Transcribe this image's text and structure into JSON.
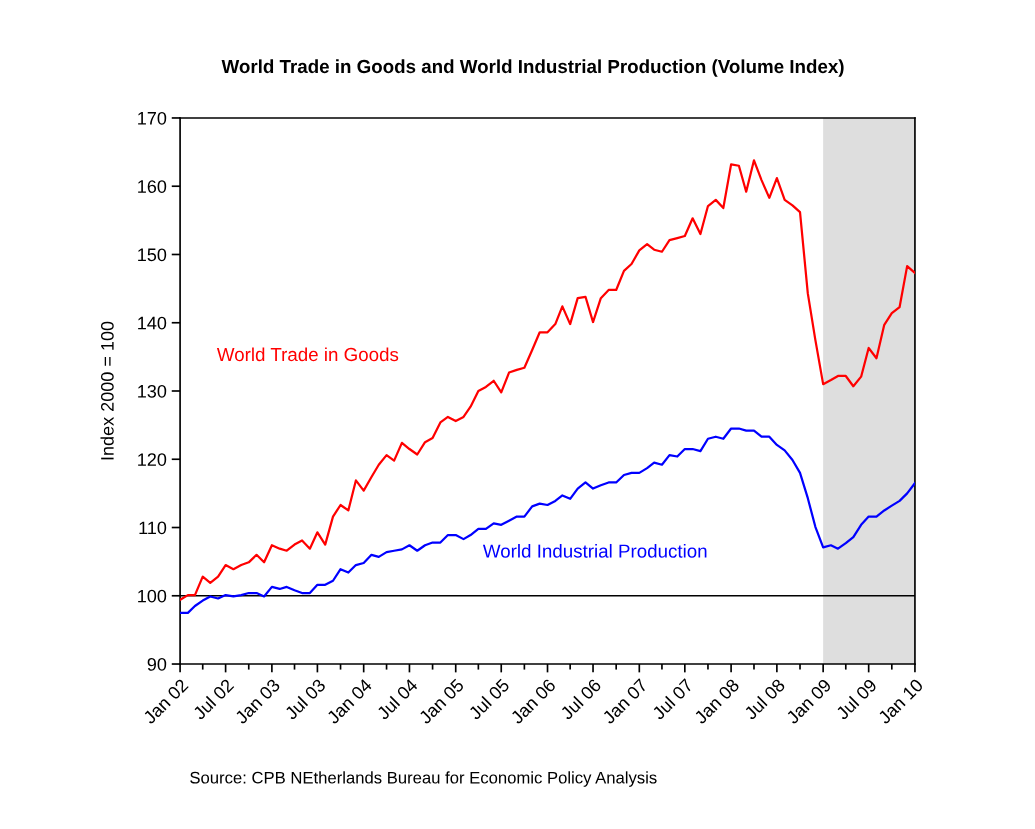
{
  "chart_data": {
    "type": "line",
    "title": "World Trade in Goods and World Industrial Production (Volume Index)",
    "ylabel": "Index 2000 = 100",
    "x": [
      "2002-01",
      "2002-02",
      "2002-03",
      "2002-04",
      "2002-05",
      "2002-06",
      "2002-07",
      "2002-08",
      "2002-09",
      "2002-10",
      "2002-11",
      "2002-12",
      "2003-01",
      "2003-02",
      "2003-03",
      "2003-04",
      "2003-05",
      "2003-06",
      "2003-07",
      "2003-08",
      "2003-09",
      "2003-10",
      "2003-11",
      "2003-12",
      "2004-01",
      "2004-02",
      "2004-03",
      "2004-04",
      "2004-05",
      "2004-06",
      "2004-07",
      "2004-08",
      "2004-09",
      "2004-10",
      "2004-11",
      "2004-12",
      "2005-01",
      "2005-02",
      "2005-03",
      "2005-04",
      "2005-05",
      "2005-06",
      "2005-07",
      "2005-08",
      "2005-09",
      "2005-10",
      "2005-11",
      "2005-12",
      "2006-01",
      "2006-02",
      "2006-03",
      "2006-04",
      "2006-05",
      "2006-06",
      "2006-07",
      "2006-08",
      "2006-09",
      "2006-10",
      "2006-11",
      "2006-12",
      "2007-01",
      "2007-02",
      "2007-03",
      "2007-04",
      "2007-05",
      "2007-06",
      "2007-07",
      "2007-08",
      "2007-09",
      "2007-10",
      "2007-11",
      "2007-12",
      "2008-01",
      "2008-02",
      "2008-03",
      "2008-04",
      "2008-05",
      "2008-06",
      "2008-07",
      "2008-08",
      "2008-09",
      "2008-10",
      "2008-11",
      "2008-12",
      "2009-01",
      "2009-02",
      "2009-03",
      "2009-04",
      "2009-05",
      "2009-06",
      "2009-07",
      "2009-08",
      "2009-09",
      "2009-10",
      "2009-11",
      "2009-12",
      "2010-01"
    ],
    "series": [
      {
        "name": "World Trade in Goods",
        "color": "#ff0000",
        "values": [
          99.4,
          100.1,
          100.1,
          102.8,
          101.9,
          102.8,
          104.5,
          103.9,
          104.5,
          104.9,
          106.0,
          104.9,
          107.4,
          106.9,
          106.6,
          107.5,
          108.1,
          106.9,
          109.3,
          107.5,
          111.6,
          113.3,
          112.5,
          116.9,
          115.4,
          117.4,
          119.2,
          120.6,
          119.8,
          122.4,
          121.5,
          120.7,
          122.5,
          123.1,
          125.4,
          126.2,
          125.6,
          126.2,
          127.7,
          130.0,
          130.6,
          131.5,
          129.8,
          132.7,
          133.1,
          133.4,
          136.0,
          138.6,
          138.6,
          139.8,
          142.4,
          139.8,
          143.6,
          143.8,
          140.1,
          143.6,
          144.8,
          144.8,
          147.6,
          148.6,
          150.6,
          151.5,
          150.7,
          150.4,
          152.1,
          152.4,
          152.7,
          155.3,
          153.0,
          157.1,
          158.0,
          156.8,
          163.2,
          163.0,
          159.2,
          163.8,
          160.9,
          158.3,
          161.2,
          158.0,
          157.2,
          156.2,
          144.3,
          137.5,
          131.0,
          131.6,
          132.2,
          132.2,
          130.7,
          132.1,
          136.3,
          134.8,
          139.7,
          141.4,
          142.3,
          148.3,
          147.3
        ]
      },
      {
        "name": "World Industrial Production",
        "color": "#0000ff",
        "values": [
          97.5,
          97.5,
          98.5,
          99.3,
          99.9,
          99.6,
          100.1,
          99.9,
          100.1,
          100.4,
          100.4,
          99.9,
          101.3,
          101.0,
          101.3,
          100.8,
          100.4,
          100.4,
          101.6,
          101.6,
          102.2,
          103.9,
          103.4,
          104.5,
          104.8,
          106.0,
          105.7,
          106.4,
          106.6,
          106.8,
          107.4,
          106.6,
          107.4,
          107.8,
          107.8,
          108.9,
          108.9,
          108.3,
          108.9,
          109.8,
          109.8,
          110.6,
          110.4,
          111.0,
          111.6,
          111.6,
          113.1,
          113.5,
          113.3,
          113.9,
          114.7,
          114.2,
          115.7,
          116.6,
          115.7,
          116.2,
          116.6,
          116.6,
          117.7,
          118.0,
          118.0,
          118.7,
          119.5,
          119.2,
          120.6,
          120.4,
          121.5,
          121.5,
          121.2,
          123.0,
          123.3,
          123.0,
          124.5,
          124.5,
          124.2,
          124.2,
          123.3,
          123.3,
          122.1,
          121.3,
          119.9,
          118.0,
          114.3,
          110.1,
          107.1,
          107.4,
          106.9,
          107.7,
          108.6,
          110.4,
          111.6,
          111.6,
          112.5,
          113.2,
          113.9,
          115.0,
          116.5
        ]
      }
    ],
    "xlim": [
      "2002-01",
      "2010-01"
    ],
    "xticks": [
      {
        "value": "2002-01",
        "label": "Jan 02"
      },
      {
        "value": "2002-04",
        "label": null
      },
      {
        "value": "2002-07",
        "label": "Jul 02"
      },
      {
        "value": "2002-10",
        "label": null
      },
      {
        "value": "2003-01",
        "label": "Jan 03"
      },
      {
        "value": "2003-04",
        "label": null
      },
      {
        "value": "2003-07",
        "label": "Jul 03"
      },
      {
        "value": "2003-10",
        "label": null
      },
      {
        "value": "2004-01",
        "label": "Jan 04"
      },
      {
        "value": "2004-04",
        "label": null
      },
      {
        "value": "2004-07",
        "label": "Jul 04"
      },
      {
        "value": "2004-10",
        "label": null
      },
      {
        "value": "2005-01",
        "label": "Jan 05"
      },
      {
        "value": "2005-04",
        "label": null
      },
      {
        "value": "2005-07",
        "label": "Jul 05"
      },
      {
        "value": "2005-10",
        "label": null
      },
      {
        "value": "2006-01",
        "label": "Jan 06"
      },
      {
        "value": "2006-04",
        "label": null
      },
      {
        "value": "2006-07",
        "label": "Jul 06"
      },
      {
        "value": "2006-10",
        "label": null
      },
      {
        "value": "2007-01",
        "label": "Jan 07"
      },
      {
        "value": "2007-04",
        "label": null
      },
      {
        "value": "2007-07",
        "label": "Jul 07"
      },
      {
        "value": "2007-10",
        "label": null
      },
      {
        "value": "2008-01",
        "label": "Jan 08"
      },
      {
        "value": "2008-04",
        "label": null
      },
      {
        "value": "2008-07",
        "label": "Jul 08"
      },
      {
        "value": "2008-10",
        "label": null
      },
      {
        "value": "2009-01",
        "label": "Jan 09"
      },
      {
        "value": "2009-04",
        "label": null
      },
      {
        "value": "2009-07",
        "label": "Jul 09"
      },
      {
        "value": "2009-10",
        "label": null
      },
      {
        "value": "2010-01",
        "label": "Jan 10"
      }
    ],
    "ylim": [
      90,
      170
    ],
    "yticks": [
      90,
      100,
      110,
      120,
      130,
      140,
      150,
      160,
      170
    ],
    "ref_lines": [
      {
        "axis": "y",
        "value": 100,
        "color": "#000000"
      }
    ],
    "bands": [
      {
        "axis": "x",
        "from": "2009-01",
        "to": "2010-01",
        "color": "#dedede"
      }
    ],
    "grid": false,
    "legend": false,
    "line_style": "solid",
    "marker": "none",
    "annotations": [
      "Source: CPB NEtherlands Bureau for Economic Policy Analysis"
    ]
  }
}
